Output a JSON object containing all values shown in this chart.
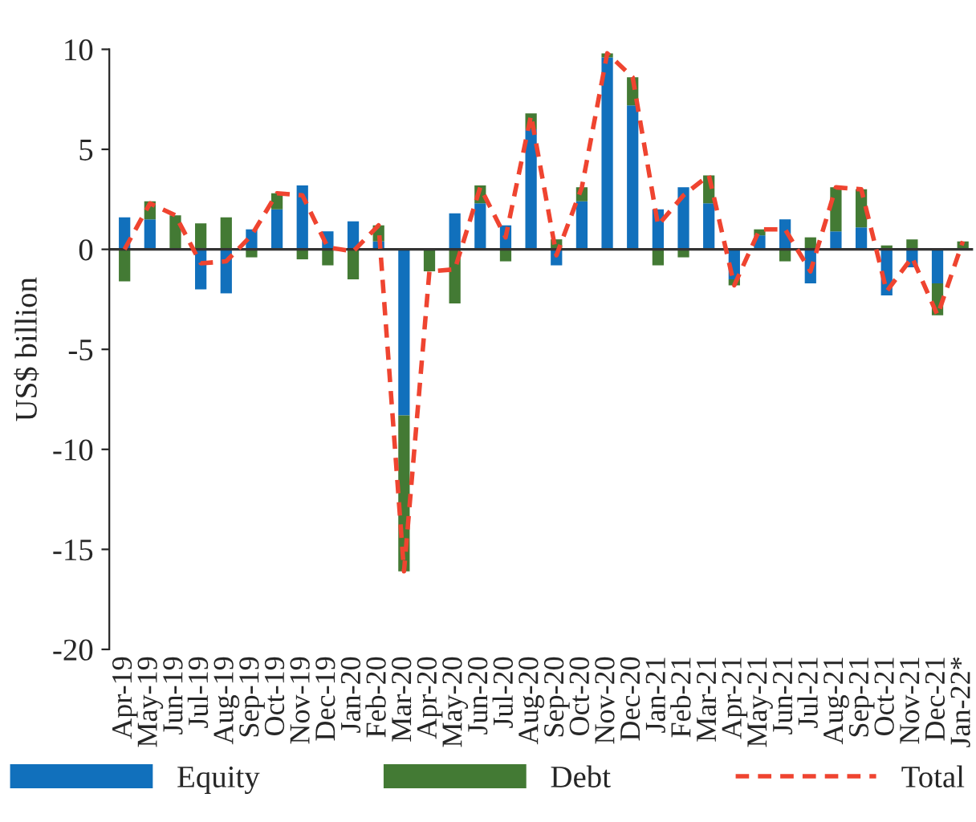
{
  "chart_data": {
    "type": "bar",
    "stacked": true,
    "ylabel": "US$ billion",
    "categories": [
      "Apr-19",
      "May-19",
      "Jun-19",
      "Jul-19",
      "Aug-19",
      "Sep-19",
      "Oct-19",
      "Nov-19",
      "Dec-19",
      "Jan-20",
      "Feb-20",
      "Mar-20",
      "Apr-20",
      "May-20",
      "Jun-20",
      "Jul-20",
      "Aug-20",
      "Sep-20",
      "Oct-20",
      "Nov-20",
      "Dec-20",
      "Jan-21",
      "Feb-21",
      "Mar-21",
      "Apr-21",
      "May-21",
      "Jun-21",
      "Jul-21",
      "Aug-21",
      "Sep-21",
      "Oct-21",
      "Nov-21",
      "Dec-21",
      "Jan-22*"
    ],
    "series": [
      {
        "name": "Equity",
        "color": "#1170bc",
        "values": [
          1.6,
          1.5,
          0,
          -2.0,
          -2.2,
          1.0,
          2.0,
          3.2,
          0.9,
          1.4,
          0.4,
          -8.3,
          0,
          1.8,
          2.3,
          1.2,
          6.0,
          -0.8,
          2.4,
          9.6,
          7.2,
          2.0,
          3.1,
          2.3,
          -1.5,
          0.7,
          1.5,
          -1.7,
          0.9,
          1.1,
          -2.3,
          -0.9,
          -1.7,
          0
        ]
      },
      {
        "name": "Debt",
        "color": "#437a34",
        "values": [
          -1.6,
          0.9,
          1.7,
          1.3,
          1.6,
          -0.4,
          0.8,
          -0.5,
          -0.8,
          -1.5,
          0.8,
          -7.8,
          -1.1,
          -2.7,
          0.9,
          -0.6,
          0.8,
          0.5,
          0.7,
          0.2,
          1.4,
          -0.8,
          -0.4,
          1.4,
          -0.3,
          0.3,
          -0.6,
          0.6,
          2.2,
          1.9,
          0.2,
          0.5,
          -1.6,
          0.4
        ]
      },
      {
        "name": "Total",
        "type": "line",
        "line_style": "dashed",
        "color": "#ef4430",
        "values": [
          0,
          2.3,
          1.7,
          -0.7,
          -0.6,
          0.7,
          2.8,
          2.7,
          0.1,
          -0.1,
          1.2,
          -16.1,
          -1.1,
          -1.0,
          3.1,
          0.6,
          6.7,
          -0.3,
          3.1,
          9.8,
          8.6,
          1.2,
          2.7,
          3.7,
          -1.8,
          1.0,
          1.0,
          -1.1,
          3.1,
          3.0,
          -2.1,
          -0.4,
          -3.3,
          0.4
        ]
      }
    ],
    "ref_lines": [
      {
        "axis": "y",
        "value": 0,
        "color": "#333333"
      }
    ],
    "ylim": [
      -20,
      10
    ],
    "yticks": [
      -20,
      -15,
      -10,
      -5,
      0,
      5,
      10
    ],
    "grid": false,
    "legend": "bottom"
  }
}
